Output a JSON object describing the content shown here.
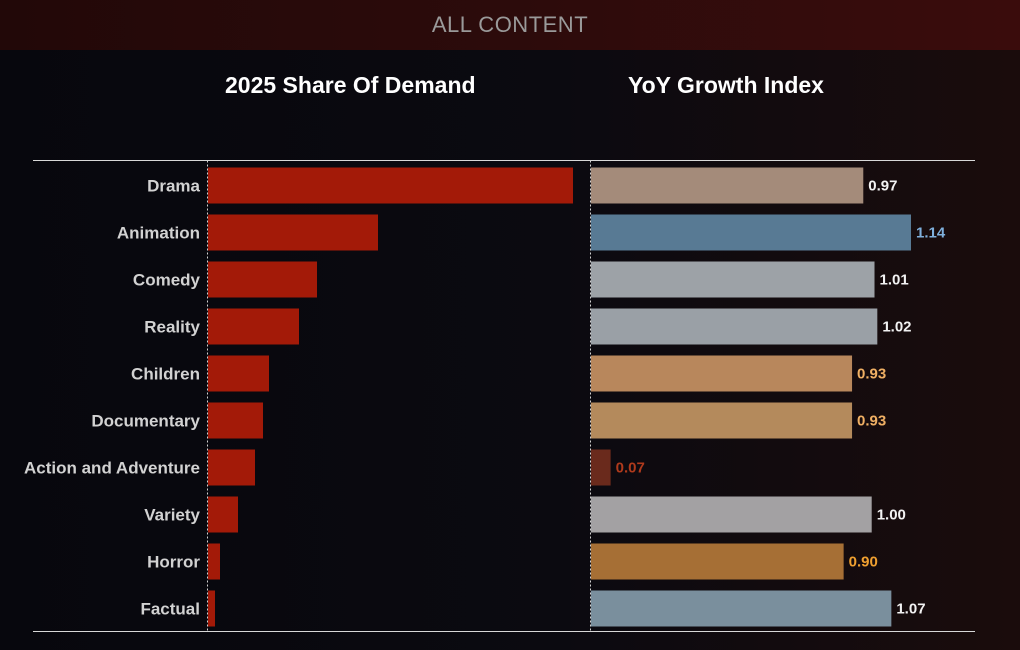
{
  "header": {
    "title": "ALL CONTENT"
  },
  "chart_data": [
    {
      "type": "bar",
      "orientation": "horizontal",
      "title": "2025 Share Of Demand",
      "categories": [
        "Drama",
        "Animation",
        "Comedy",
        "Reality",
        "Children",
        "Documentary",
        "Action and Adventure",
        "Variety",
        "Horror",
        "Factual"
      ],
      "values": [
        0.365,
        0.17,
        0.109,
        0.091,
        0.061,
        0.055,
        0.047,
        0.03,
        0.012,
        0.007
      ],
      "xlim": [
        0,
        0.365
      ],
      "bar_color": "#a31a08",
      "axis_labels_shown": false
    },
    {
      "type": "bar",
      "orientation": "horizontal",
      "title": "YoY Growth Index",
      "categories": [
        "Drama",
        "Animation",
        "Comedy",
        "Reality",
        "Children",
        "Documentary",
        "Action and Adventure",
        "Variety",
        "Horror",
        "Factual"
      ],
      "values": [
        0.97,
        1.14,
        1.01,
        1.02,
        0.93,
        0.93,
        0.07,
        1.0,
        0.9,
        1.07
      ],
      "value_labels": [
        "0.97",
        "1.14",
        "1.01",
        "1.02",
        "0.93",
        "0.93",
        "0.07",
        "1.00",
        "0.90",
        "1.07"
      ],
      "xlim": [
        0,
        1.14
      ],
      "bar_colors": [
        "#a48b7a",
        "#587a94",
        "#9da2a7",
        "#9aa0a6",
        "#b8875c",
        "#b48a5c",
        "#6a2a1c",
        "#a3a1a3",
        "#a66f35",
        "#7a8f9d"
      ],
      "label_colors": [
        "#f2f2f2",
        "#7fb0dc",
        "#f2f2f2",
        "#f2f2f2",
        "#f0b064",
        "#f0b064",
        "#b03a1c",
        "#f2f2f2",
        "#f0a030",
        "#f2f2f2"
      ]
    }
  ]
}
